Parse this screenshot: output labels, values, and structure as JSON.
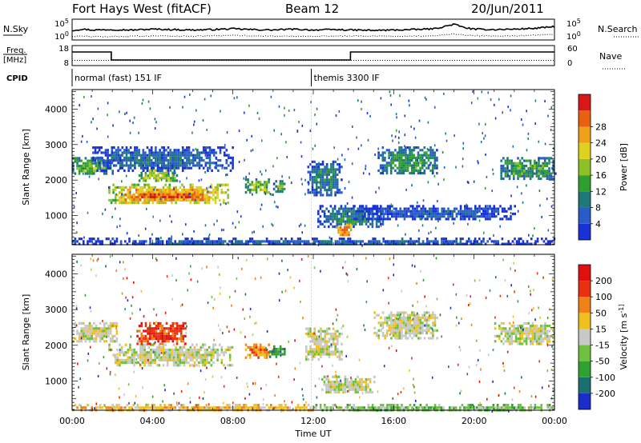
{
  "header": {
    "station": "Fort Hays West (fitACF)",
    "beam": "Beam 12",
    "date": "20/Jun/2011"
  },
  "chart_data": [
    {
      "type": "line",
      "id": "noise",
      "left_label": "N.Sky",
      "right_label": "N.Search",
      "left_ticks": [
        "10^5",
        "10^0"
      ],
      "right_ticks": [
        "10^5",
        "10^0"
      ],
      "x_range_hours": [
        0,
        24
      ],
      "series": [
        {
          "style": "solid",
          "x": [
            0,
            0.5,
            1,
            2,
            3,
            4,
            5,
            6,
            7,
            8,
            9,
            10,
            11,
            12,
            13,
            14,
            15,
            16,
            17,
            18,
            18.5,
            19,
            19.5,
            20,
            21,
            22,
            23,
            24
          ],
          "values": [
            2.3,
            2.6,
            2.4,
            2.5,
            2.4,
            2.6,
            2.5,
            2.4,
            2.5,
            2.7,
            2.5,
            2.4,
            2.6,
            2.4,
            2.5,
            2.4,
            2.3,
            2.4,
            2.5,
            2.7,
            3.2,
            3.8,
            3.0,
            2.6,
            2.5,
            2.6,
            2.8,
            3.2
          ]
        },
        {
          "style": "dotted",
          "x": [
            0,
            2,
            4,
            6,
            8,
            10,
            12,
            14,
            16,
            18,
            19,
            20,
            22,
            24
          ],
          "values": [
            0.9,
            0.8,
            1.0,
            0.9,
            1.1,
            0.9,
            0.9,
            1.0,
            0.9,
            1.0,
            1.4,
            1.0,
            1.0,
            1.3
          ]
        }
      ]
    },
    {
      "type": "line",
      "id": "frequency",
      "left_label": "Freq.",
      "left_unit": "[MHz]",
      "right_label": "Nave",
      "left_ticks": [
        "18",
        "8"
      ],
      "right_ticks": [
        "60",
        "0"
      ],
      "x_range_hours": [
        0,
        24
      ],
      "series": [
        {
          "style": "solid",
          "name_hint": "frequency",
          "x": [
            0,
            1.95,
            1.95,
            13.85,
            13.85,
            24
          ],
          "values": [
            14.8,
            14.8,
            10.8,
            10.8,
            14.8,
            14.8
          ]
        },
        {
          "style": "dotted",
          "name_hint": "nave",
          "x": [
            0,
            24
          ],
          "values": [
            10.6,
            10.6
          ]
        }
      ]
    },
    {
      "type": "table",
      "id": "cpid",
      "label": "CPID",
      "segments": [
        {
          "start_hour": 0,
          "end_hour": 11.9,
          "text": "normal (fast) 151 IF"
        },
        {
          "start_hour": 11.9,
          "end_hour": 24,
          "text": "themis 3300 IF"
        }
      ]
    },
    {
      "type": "heatmap",
      "id": "power",
      "ylabel": "Slant Range [km]",
      "y_ticks": [
        1000,
        2000,
        3000,
        4000
      ],
      "ylim": [
        180,
        4550
      ],
      "xlim_hours": [
        0,
        24
      ],
      "colorbar_label": "Power [dB]",
      "colorbar_ticks": [
        4,
        8,
        12,
        16,
        20,
        24,
        28
      ],
      "colorbar_range": [
        0,
        32
      ],
      "colors": [
        "#1832d8",
        "#2a5cc8",
        "#1e7a7a",
        "#2fa030",
        "#90c028",
        "#e0d020",
        "#f0a018",
        "#e86010",
        "#d81818"
      ],
      "regions": [
        {
          "x0": 0.0,
          "x1": 2.0,
          "y0": 2150,
          "y1": 2650,
          "v": 14
        },
        {
          "x0": 1.8,
          "x1": 7.8,
          "y0": 1350,
          "y1": 1900,
          "v": 22
        },
        {
          "x0": 2.3,
          "x1": 7.0,
          "y0": 1450,
          "y1": 1700,
          "v": 27
        },
        {
          "x0": 3.3,
          "x1": 5.2,
          "y0": 1950,
          "y1": 2450,
          "v": 17
        },
        {
          "x0": 1.0,
          "x1": 8.0,
          "y0": 2300,
          "y1": 2950,
          "v": 7
        },
        {
          "x0": 8.6,
          "x1": 9.8,
          "y0": 1650,
          "y1": 2050,
          "v": 16
        },
        {
          "x0": 10.0,
          "x1": 10.6,
          "y0": 1650,
          "y1": 2000,
          "v": 13
        },
        {
          "x0": 11.7,
          "x1": 13.4,
          "y0": 1600,
          "y1": 2550,
          "v": 9
        },
        {
          "x0": 12.2,
          "x1": 15.5,
          "y0": 700,
          "y1": 1300,
          "v": 9
        },
        {
          "x0": 13.1,
          "x1": 13.9,
          "y0": 420,
          "y1": 850,
          "v": 24
        },
        {
          "x0": 15.2,
          "x1": 18.2,
          "y0": 2200,
          "y1": 2950,
          "v": 11
        },
        {
          "x0": 21.2,
          "x1": 24.0,
          "y0": 2050,
          "y1": 2650,
          "v": 12
        },
        {
          "x0": 14.0,
          "x1": 22.0,
          "y0": 900,
          "y1": 1300,
          "v": 5
        },
        {
          "x0": 0.0,
          "x1": 24.0,
          "y0": 190,
          "y1": 380,
          "v": 6
        }
      ]
    },
    {
      "type": "heatmap",
      "id": "velocity",
      "ylabel": "Slant Range [km]",
      "y_ticks": [
        1000,
        2000,
        3000,
        4000
      ],
      "ylim": [
        180,
        4550
      ],
      "xlim_hours": [
        0,
        24
      ],
      "xlabel": "Time UT",
      "x_ticks": [
        "00:00",
        "04:00",
        "08:00",
        "12:00",
        "16:00",
        "20:00",
        "00:00"
      ],
      "colorbar_label": "Velocity [m s^-1]",
      "colorbar_ticks": [
        200,
        100,
        50,
        15,
        -15,
        -50,
        -100,
        -200
      ],
      "colors": [
        "#1c2cc8",
        "#1a7070",
        "#30a030",
        "#70c040",
        "#c8c8c8",
        "#f0c020",
        "#f08018",
        "#e83010",
        "#e01010"
      ],
      "regions": [
        {
          "x0": 0.0,
          "x1": 2.2,
          "y0": 2100,
          "y1": 2650,
          "v": 4
        },
        {
          "x0": 1.8,
          "x1": 8.0,
          "y0": 1450,
          "y1": 2050,
          "v": 4
        },
        {
          "x0": 3.2,
          "x1": 5.6,
          "y0": 2050,
          "y1": 2650,
          "v": 7
        },
        {
          "x0": 8.6,
          "x1": 10.0,
          "y0": 1650,
          "y1": 2050,
          "v": 6
        },
        {
          "x0": 9.8,
          "x1": 10.6,
          "y0": 1700,
          "y1": 2000,
          "v": 2
        },
        {
          "x0": 11.6,
          "x1": 13.4,
          "y0": 1600,
          "y1": 2500,
          "v": 4
        },
        {
          "x0": 12.4,
          "x1": 15.0,
          "y0": 650,
          "y1": 1150,
          "v": 4
        },
        {
          "x0": 15.0,
          "x1": 18.2,
          "y0": 2200,
          "y1": 2950,
          "v": 4
        },
        {
          "x0": 21.0,
          "x1": 24.0,
          "y0": 2050,
          "y1": 2650,
          "v": 4
        },
        {
          "x0": 0.0,
          "x1": 12.0,
          "y0": 190,
          "y1": 360,
          "v": 5
        },
        {
          "x0": 12.0,
          "x1": 24.0,
          "y0": 190,
          "y1": 360,
          "v": 3
        }
      ]
    }
  ]
}
